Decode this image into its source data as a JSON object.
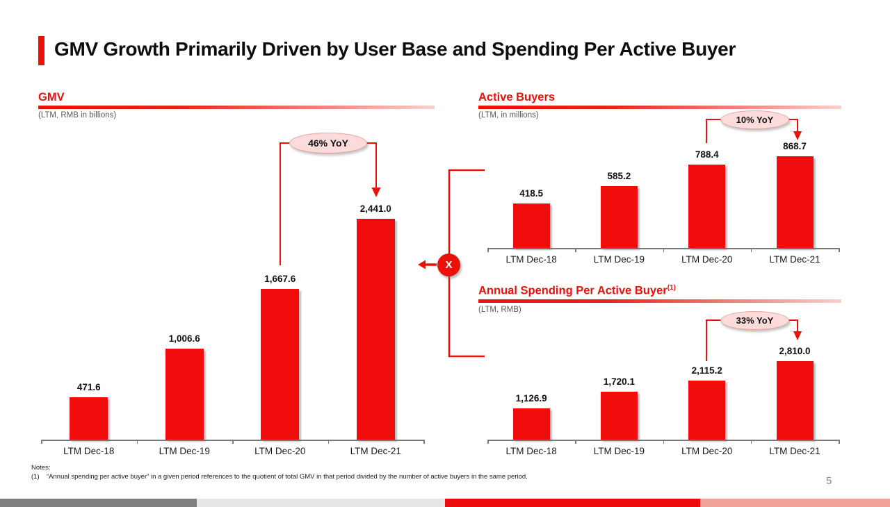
{
  "slide": {
    "title": "GMV Growth Primarily Driven by User Base and Spending Per Active Buyer",
    "page_number": "5",
    "multiply_symbol": "X",
    "notes_title": "Notes:",
    "note_1_marker": "(1)",
    "note_1_text": "“Annual spending per active buyer” in a given period references to the quotient of total GMV in that period divided by the number of active buyers in the same period."
  },
  "colors": {
    "accent_red": "#e8120a",
    "bar_red": "#f20d0d",
    "bubble_fill": "#fbdcda",
    "bubble_border": "#e9a49e",
    "strip_dark_gray": "#7f7f7f",
    "strip_light_gray": "#e7e7e7",
    "strip_red": "#ed0c0c",
    "strip_salmon": "#f1a39b"
  },
  "chart_data": [
    {
      "id": "gmv",
      "type": "bar",
      "title": "GMV",
      "title_superscript": "",
      "subtitle": "(LTM, RMB in billions)",
      "categories": [
        "LTM Dec-18",
        "LTM Dec-19",
        "LTM Dec-20",
        "LTM Dec-21"
      ],
      "values": [
        471.6,
        1006.6,
        1667.6,
        2441.0
      ],
      "value_labels": [
        "471.6",
        "1,006.6",
        "1,667.6",
        "2,441.0"
      ],
      "annotation": {
        "label": "46% YoY",
        "from": "LTM Dec-20",
        "to": "LTM Dec-21"
      },
      "bar_color": "#f20d0d",
      "xlabel": "",
      "ylabel": "",
      "ylim": [
        0,
        2500
      ],
      "grid": false,
      "legend": false,
      "value_labels_shown": true
    },
    {
      "id": "buyers",
      "type": "bar",
      "title": "Active Buyers",
      "title_superscript": "",
      "subtitle": "(LTM, in millions)",
      "categories": [
        "LTM Dec-18",
        "LTM Dec-19",
        "LTM Dec-20",
        "LTM Dec-21"
      ],
      "values": [
        418.5,
        585.2,
        788.4,
        868.7
      ],
      "value_labels": [
        "418.5",
        "585.2",
        "788.4",
        "868.7"
      ],
      "annotation": {
        "label": "10% YoY",
        "from": "LTM Dec-20",
        "to": "LTM Dec-21"
      },
      "bar_color": "#f20d0d",
      "xlabel": "",
      "ylabel": "",
      "ylim": [
        0,
        900
      ],
      "grid": false,
      "legend": false,
      "value_labels_shown": true
    },
    {
      "id": "spending",
      "type": "bar",
      "title": "Annual Spending Per Active Buyer",
      "title_superscript": "(1)",
      "subtitle": "(LTM, RMB)",
      "categories": [
        "LTM Dec-18",
        "LTM Dec-19",
        "LTM Dec-20",
        "LTM Dec-21"
      ],
      "values": [
        1126.9,
        1720.1,
        2115.2,
        2810.0
      ],
      "value_labels": [
        "1,126.9",
        "1,720.1",
        "2,115.2",
        "2,810.0"
      ],
      "annotation": {
        "label": "33% YoY",
        "from": "LTM Dec-20",
        "to": "LTM Dec-21"
      },
      "bar_color": "#f20d0d",
      "xlabel": "",
      "ylabel": "",
      "ylim": [
        0,
        2900
      ],
      "grid": false,
      "legend": false,
      "value_labels_shown": true
    }
  ]
}
